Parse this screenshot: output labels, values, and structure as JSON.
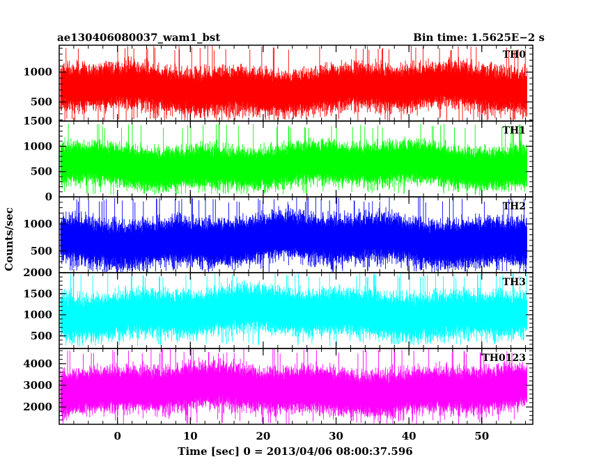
{
  "chart_data": {
    "type": "line",
    "title_left": "ae130406080037_wam1_bst",
    "title_right": "Bin time: 1.5625E−2 s",
    "xlabel": "Time [sec] 0 = 2013/04/06 08:00:37.596",
    "ylabel": "Counts/sec",
    "xlim": [
      -8,
      57
    ],
    "x_ticks": [
      0,
      10,
      20,
      30,
      40,
      50
    ],
    "x_tick_labels": [
      "0",
      "10",
      "20",
      "30",
      "40",
      "50"
    ],
    "data_x_range": [
      -7.8,
      56.2
    ],
    "bin_time_s": 0.015625,
    "panels": [
      {
        "name": "TH0",
        "color": "#ff0000",
        "ylim": [
          180,
          1450
        ],
        "yticks": [
          500,
          1000
        ],
        "ytick_labels": [
          "500",
          "1000"
        ],
        "mean": 720,
        "typical_range": [
          350,
          1250
        ],
        "extreme_range": [
          160,
          1450
        ]
      },
      {
        "name": "TH1",
        "color": "#00ff00",
        "ylim": [
          0,
          1500
        ],
        "yticks": [
          0,
          500,
          1000,
          1500
        ],
        "ytick_labels": [
          "0",
          "500",
          "1000",
          "1500"
        ],
        "mean": 620,
        "typical_range": [
          180,
          1180
        ],
        "extreme_range": [
          40,
          1450
        ]
      },
      {
        "name": "TH2",
        "color": "#0000ff",
        "ylim": [
          100,
          1500
        ],
        "yticks": [
          500,
          1000
        ],
        "ytick_labels": [
          "500",
          "1000"
        ],
        "mean": 700,
        "typical_range": [
          250,
          1300
        ],
        "extreme_range": [
          100,
          1500
        ]
      },
      {
        "name": "TH3",
        "color": "#00ffff",
        "ylim": [
          200,
          2000
        ],
        "yticks": [
          500,
          1000,
          1500,
          2000
        ],
        "ytick_labels": [
          "500",
          "1000",
          "1500",
          "2000"
        ],
        "mean": 1050,
        "typical_range": [
          450,
          1750
        ],
        "extreme_range": [
          250,
          2000
        ]
      },
      {
        "name": "TH0123",
        "color": "#ff00ff",
        "ylim": [
          1200,
          4700
        ],
        "yticks": [
          2000,
          3000,
          4000
        ],
        "ytick_labels": [
          "2000",
          "3000",
          "4000"
        ],
        "mean": 2800,
        "typical_range": [
          1700,
          4200
        ],
        "extreme_range": [
          1200,
          4700
        ]
      }
    ]
  }
}
